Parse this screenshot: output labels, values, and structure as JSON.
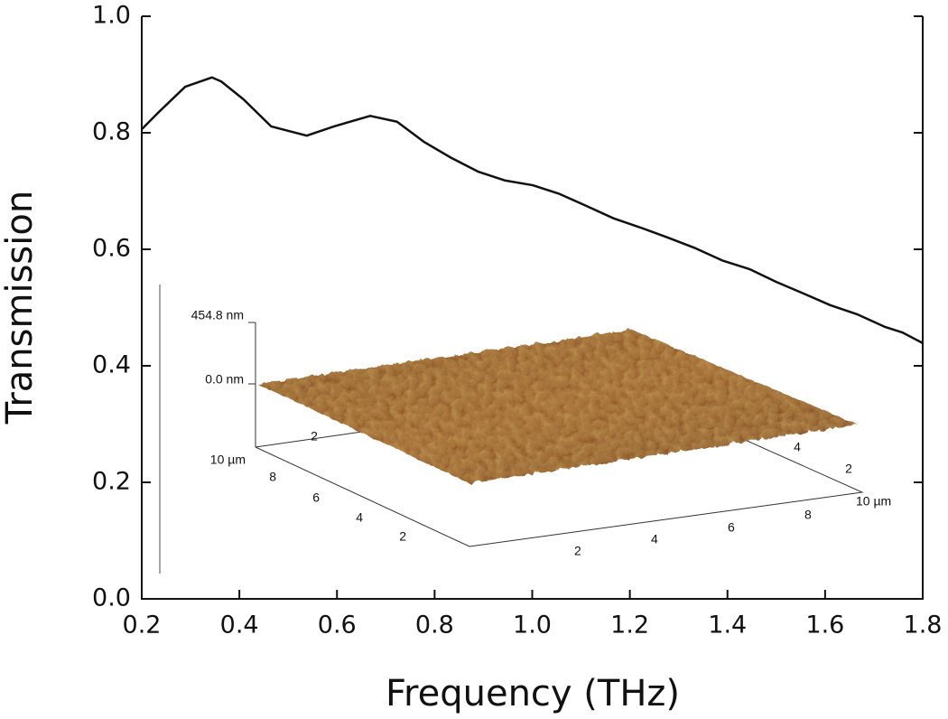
{
  "chart_data": {
    "type": "line",
    "xlabel": "Frequency (THz)",
    "ylabel": "Transmission",
    "x": [
      0.2,
      0.233,
      0.289,
      0.344,
      0.363,
      0.409,
      0.465,
      0.538,
      0.594,
      0.668,
      0.723,
      0.779,
      0.834,
      0.89,
      0.945,
      1.001,
      1.056,
      1.112,
      1.167,
      1.223,
      1.278,
      1.334,
      1.389,
      1.445,
      1.5,
      1.556,
      1.611,
      1.667,
      1.722,
      1.759,
      1.8
    ],
    "values": [
      0.806,
      0.834,
      0.879,
      0.895,
      0.888,
      0.857,
      0.811,
      0.795,
      0.811,
      0.829,
      0.819,
      0.784,
      0.757,
      0.733,
      0.718,
      0.71,
      0.695,
      0.674,
      0.653,
      0.637,
      0.62,
      0.602,
      0.581,
      0.566,
      0.544,
      0.524,
      0.504,
      0.488,
      0.467,
      0.457,
      0.439
    ],
    "color": "#111111",
    "xlim": [
      0.2,
      1.8
    ],
    "ylim": [
      0,
      1
    ],
    "xticks": [
      0.2,
      0.4,
      0.6,
      0.8,
      {
        "value": 1,
        "label": "1.0"
      },
      1.2,
      1.4,
      1.6,
      1.8
    ],
    "yticks": [
      {
        "value": 0,
        "label": "0.0"
      },
      0.2,
      0.4,
      0.6,
      0.8,
      {
        "value": 1,
        "label": "1.0"
      }
    ],
    "inset": {
      "z_labels": [
        "454.8 nm",
        "0.0 nm"
      ],
      "left_axis_labels": [
        "10 µm",
        "8",
        "6",
        "4",
        "2"
      ],
      "front_axis_labels": [
        "2",
        "4",
        "6",
        "8",
        "10 µm"
      ],
      "back_left_labels": [
        "2"
      ],
      "back_right_labels": [
        "4",
        "2"
      ]
    }
  }
}
